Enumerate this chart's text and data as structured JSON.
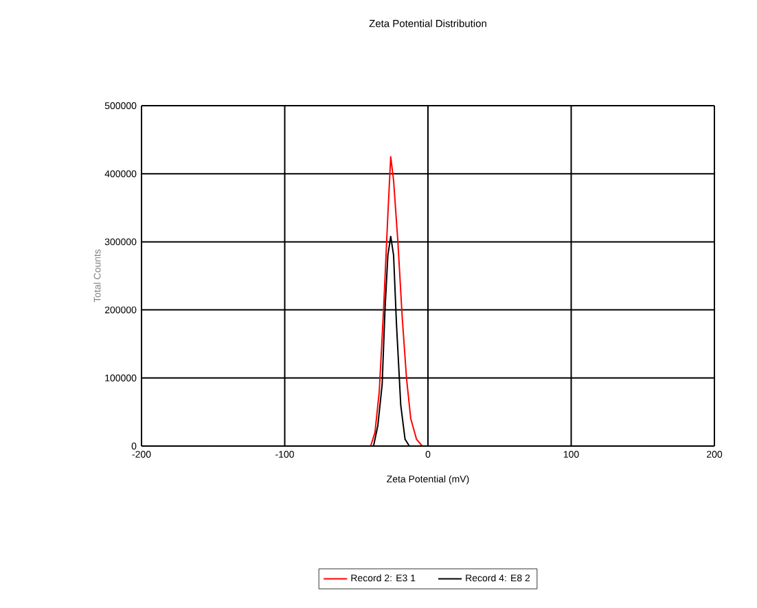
{
  "chart_data": {
    "type": "line",
    "title": "Zeta Potential Distribution",
    "xlabel": "Zeta Potential (mV)",
    "ylabel": "Total Counts",
    "xlim": [
      -200,
      200
    ],
    "xticks": [
      -200,
      -100,
      0,
      100,
      200
    ],
    "ylim": [
      0,
      500000
    ],
    "yticks": [
      0,
      100000,
      200000,
      300000,
      400000,
      500000
    ],
    "grid": true,
    "legend": "bottom",
    "marker": "none",
    "line_style": "solid",
    "series": [
      {
        "name": "Record 2: E3 1",
        "color": "#ff0000",
        "x": [
          -150,
          -40,
          -37,
          -34,
          -31,
          -28,
          -26,
          -24,
          -21,
          -18,
          -15,
          -12,
          -8,
          -4,
          150
        ],
        "values": [
          0,
          0,
          20000,
          80000,
          200000,
          340000,
          425000,
          390000,
          300000,
          190000,
          100000,
          40000,
          10000,
          0,
          0
        ]
      },
      {
        "name": "Record 4: E8 2",
        "color": "#000000",
        "x": [
          -150,
          -38,
          -35,
          -32,
          -30,
          -28,
          -26,
          -24,
          -22,
          -19,
          -16,
          -13,
          150
        ],
        "values": [
          0,
          0,
          30000,
          90000,
          200000,
          280000,
          308000,
          280000,
          180000,
          60000,
          10000,
          0,
          0
        ]
      }
    ]
  }
}
